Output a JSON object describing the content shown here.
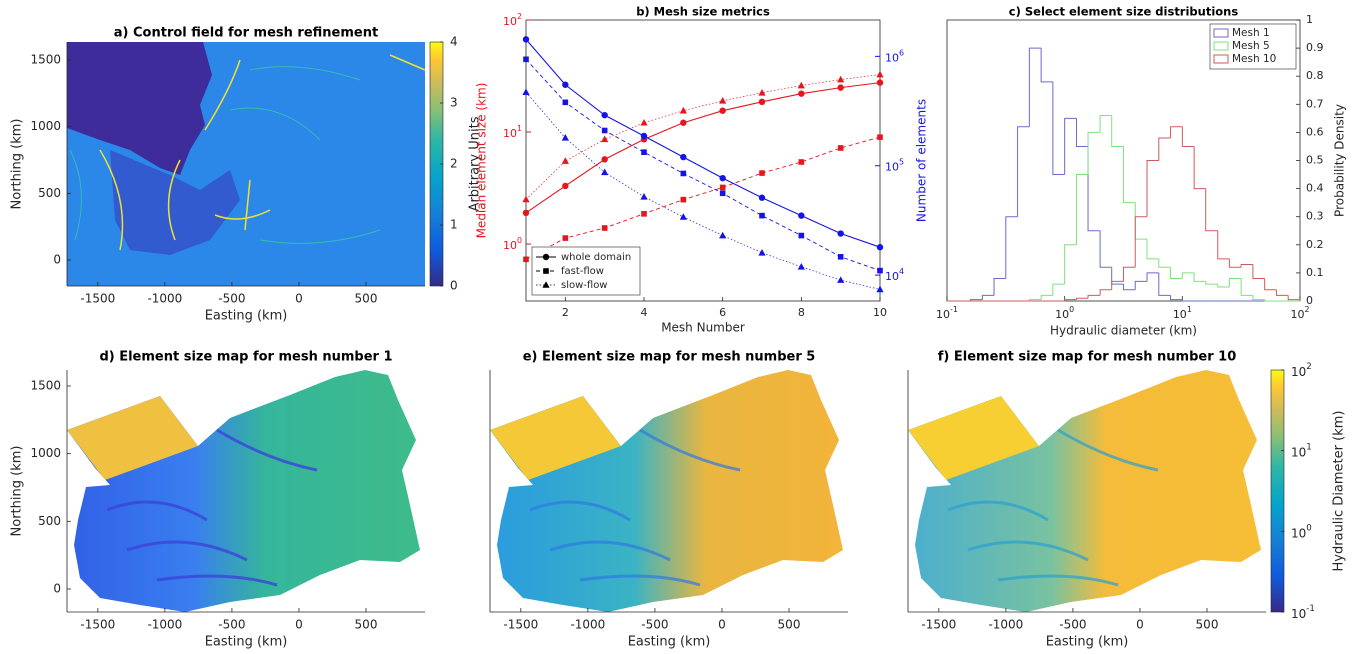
{
  "chart_data": [
    {
      "type": "map",
      "title": "a) Control field for mesh refinement",
      "xlabel": "Easting (km)",
      "ylabel": "Northing (km)",
      "xlim": [
        -1730,
        940
      ],
      "ylim": [
        -195,
        1635
      ],
      "xticks": [
        -1500,
        -1000,
        -500,
        0,
        500
      ],
      "yticks": [
        0,
        500,
        1000,
        1500
      ],
      "colorbar": {
        "label": "Arbitrary Units",
        "lim": [
          0,
          4
        ],
        "ticks": [
          0,
          1,
          2,
          3,
          4
        ],
        "log": false
      }
    },
    {
      "type": "line",
      "title": "b) Mesh size metrics",
      "xlabel": "Mesh Number",
      "ylabel": "Median element size (km)",
      "y2label": "Number of elements",
      "x": [
        1,
        2,
        3,
        4,
        5,
        6,
        7,
        8,
        9,
        10
      ],
      "xlim": [
        1,
        10
      ],
      "xticks": [
        2,
        4,
        6,
        8,
        10
      ],
      "log_y": true,
      "ylim": [
        0.31,
        100
      ],
      "yticks": [
        {
          "value": 1,
          "label": "10^0"
        },
        {
          "value": 10,
          "label": "10^1"
        },
        {
          "value": 100,
          "label": "10^2"
        }
      ],
      "y2lim": [
        5800,
        2150000
      ],
      "y2ticks": [
        {
          "value": 10000,
          "label": "10^4"
        },
        {
          "value": 100000,
          "label": "10^5"
        },
        {
          "value": 1000000,
          "label": "10^6"
        }
      ],
      "y_color": "#e8141e",
      "y2_color": "#1414e6",
      "legend": "lower left",
      "series": [
        {
          "name": "whole domain",
          "marker": "circle",
          "line": "solid",
          "values": [
            1.9,
            3.3,
            5.7,
            8.6,
            12.1,
            15.5,
            18.6,
            22.0,
            24.9,
            27.6
          ],
          "y2_values": [
            1430000,
            550000,
            290000,
            187000,
            120000,
            77000,
            51000,
            35000,
            24000,
            18000
          ]
        },
        {
          "name": "fast-flow",
          "marker": "square",
          "line": "dashed",
          "values": [
            0.73,
            1.13,
            1.39,
            1.86,
            2.49,
            3.2,
            4.3,
            5.4,
            7.2,
            9.0
          ],
          "y2_values": [
            940000,
            380000,
            210000,
            133000,
            85000,
            56000,
            35000,
            23000,
            14700,
            11000
          ]
        },
        {
          "name": "slow-flow",
          "marker": "triangle",
          "line": "dotted",
          "values": [
            2.5,
            5.5,
            8.6,
            12.1,
            15.5,
            19.0,
            22.4,
            26.0,
            29.4,
            32.6
          ],
          "y2_values": [
            470000,
            180000,
            87000,
            52000,
            34000,
            23000,
            16000,
            11900,
            9000,
            7400
          ]
        }
      ]
    },
    {
      "type": "histogram",
      "title": "c) Select element size distributions",
      "xlabel": "Hydraulic diameter (km)",
      "ylabel": "Probability Density",
      "log_x": true,
      "xlim": [
        0.1,
        100
      ],
      "xticks": [
        {
          "value": 0.1,
          "label": "10^-1"
        },
        {
          "value": 1,
          "label": "10^0"
        },
        {
          "value": 10,
          "label": "10^1"
        },
        {
          "value": 100,
          "label": "10^2"
        }
      ],
      "ylim": [
        0,
        1
      ],
      "yticks": [
        0,
        0.1,
        0.2,
        0.3,
        0.4,
        0.5,
        0.6,
        0.7,
        0.8,
        0.9,
        1
      ],
      "y_axis_side": "right",
      "legend": "upper right",
      "bins": [
        0.1,
        0.126,
        0.158,
        0.2,
        0.251,
        0.316,
        0.398,
        0.501,
        0.631,
        0.794,
        1,
        1.26,
        1.58,
        2,
        2.51,
        3.16,
        3.98,
        5.01,
        6.31,
        7.94,
        10,
        12.6,
        15.8,
        20,
        25.1,
        31.6,
        39.8,
        50.1,
        63.1,
        79.4,
        100
      ],
      "series": [
        {
          "name": "Mesh 1",
          "color": "#6a6acf",
          "values": [
            0,
            0,
            0.005,
            0.02,
            0.08,
            0.3,
            0.62,
            0.9,
            0.78,
            0.45,
            0.65,
            0.55,
            0.25,
            0.12,
            0.06,
            0.04,
            0.07,
            0.1,
            0.02,
            0.005,
            0,
            0,
            0,
            0,
            0,
            0,
            0,
            0,
            0,
            0
          ]
        },
        {
          "name": "Mesh 5",
          "color": "#7fe07f",
          "values": [
            0,
            0,
            0,
            0,
            0,
            0,
            0,
            0.005,
            0.02,
            0.06,
            0.2,
            0.45,
            0.6,
            0.66,
            0.55,
            0.35,
            0.22,
            0.15,
            0.12,
            0.08,
            0.1,
            0.07,
            0.06,
            0.05,
            0.08,
            0.02,
            0.005,
            0,
            0,
            0
          ]
        },
        {
          "name": "Mesh 10",
          "color": "#d05a5a",
          "values": [
            0,
            0,
            0,
            0,
            0,
            0,
            0,
            0,
            0,
            0,
            0.005,
            0.01,
            0.02,
            0.04,
            0.07,
            0.12,
            0.3,
            0.5,
            0.58,
            0.62,
            0.55,
            0.4,
            0.25,
            0.15,
            0.12,
            0.13,
            0.08,
            0.04,
            0.02,
            0.005
          ]
        }
      ]
    },
    {
      "type": "map",
      "title": "d) Element size map for mesh number 1",
      "xlabel": "Easting (km)",
      "ylabel": "Northing (km)",
      "xlim": [
        -1730,
        940
      ],
      "ylim": [
        -170,
        1618
      ],
      "xticks": [
        -1500,
        -1000,
        -500,
        0,
        500
      ],
      "yticks": [
        0,
        500,
        1000,
        1500
      ]
    },
    {
      "type": "map",
      "title": "e) Element size map for mesh number 5",
      "xlabel": "Easting (km)",
      "xlim": [
        -1730,
        940
      ],
      "ylim": [
        -170,
        1618
      ],
      "xticks": [
        -1500,
        -1000,
        -500,
        0,
        500
      ]
    },
    {
      "type": "map",
      "title": "f) Element size map for mesh number 10",
      "xlabel": "Easting (km)",
      "xlim": [
        -1730,
        940
      ],
      "ylim": [
        -170,
        1618
      ],
      "xticks": [
        -1500,
        -1000,
        -500,
        0,
        500
      ],
      "colorbar": {
        "label": "Hydraulic Diameter (km)",
        "lim": [
          0.1,
          100
        ],
        "log": true,
        "ticks": [
          {
            "value": 0.1,
            "label": "10^-1"
          },
          {
            "value": 1,
            "label": "10^0"
          },
          {
            "value": 10,
            "label": "10^1"
          },
          {
            "value": 100,
            "label": "10^2"
          }
        ]
      }
    }
  ]
}
